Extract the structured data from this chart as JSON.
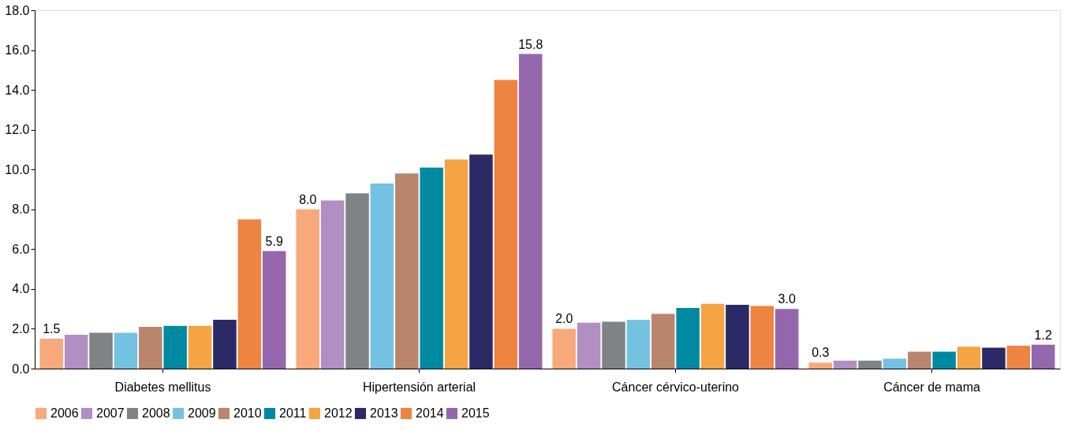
{
  "chart_data": {
    "type": "bar",
    "categories": [
      "Diabetes mellitus",
      "Hipertensión arterial",
      "Cáncer cérvico-uterino",
      "Cáncer de mama"
    ],
    "series": [
      {
        "name": "2006",
        "color": "#f7a97b",
        "values": [
          1.5,
          8.0,
          2.0,
          0.3
        ],
        "value_labels": [
          "1.5",
          "8.0",
          "2.0",
          "0.3"
        ]
      },
      {
        "name": "2007",
        "color": "#b28fc2",
        "values": [
          1.7,
          8.45,
          2.3,
          0.4
        ]
      },
      {
        "name": "2008",
        "color": "#808285",
        "values": [
          1.8,
          8.8,
          2.35,
          0.4
        ]
      },
      {
        "name": "2009",
        "color": "#74c2e1",
        "values": [
          1.8,
          9.3,
          2.45,
          0.5
        ]
      },
      {
        "name": "2010",
        "color": "#b9856c",
        "values": [
          2.1,
          9.8,
          2.75,
          0.85
        ]
      },
      {
        "name": "2011",
        "color": "#008aa1",
        "values": [
          2.15,
          10.1,
          3.05,
          0.85
        ]
      },
      {
        "name": "2012",
        "color": "#f4a443",
        "values": [
          2.15,
          10.5,
          3.25,
          1.1
        ]
      },
      {
        "name": "2013",
        "color": "#2b2a66",
        "values": [
          2.45,
          10.75,
          3.2,
          1.05
        ]
      },
      {
        "name": "2014",
        "color": "#ef8341",
        "values": [
          7.5,
          14.5,
          3.15,
          1.15
        ]
      },
      {
        "name": "2015",
        "color": "#9467ad",
        "values": [
          5.9,
          15.8,
          3.0,
          1.2
        ],
        "value_labels": [
          "5.9",
          "15.8",
          "3.0",
          "1.2"
        ]
      }
    ],
    "ylim": [
      0,
      18
    ],
    "yticks": [
      {
        "value": 0,
        "label": "0.0"
      },
      {
        "value": 2,
        "label": "2.0"
      },
      {
        "value": 4,
        "label": "4.0"
      },
      {
        "value": 6,
        "label": "6.0"
      },
      {
        "value": 8,
        "label": "8.0"
      },
      {
        "value": 10,
        "label": "10.0"
      },
      {
        "value": 12,
        "label": "12.0"
      },
      {
        "value": 14,
        "label": "14.0"
      },
      {
        "value": 16,
        "label": "16.0"
      },
      {
        "value": 18,
        "label": "18.0"
      }
    ],
    "grid": false,
    "legend": "bottom"
  }
}
